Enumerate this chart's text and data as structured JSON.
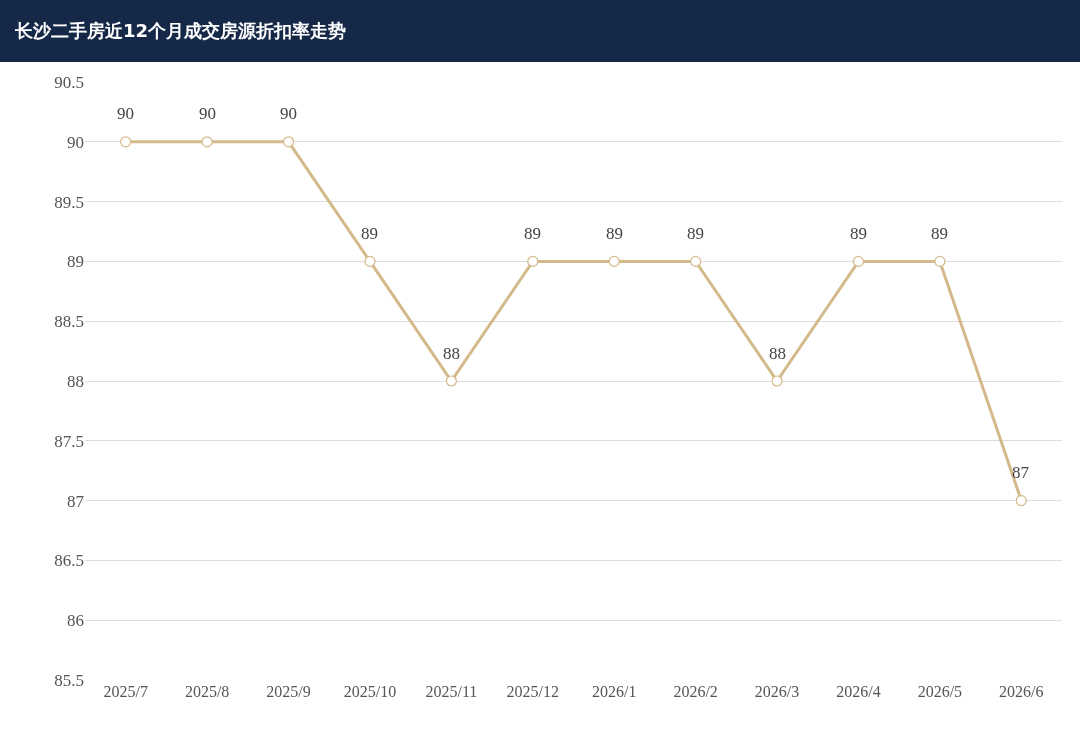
{
  "chart_data": {
    "type": "line",
    "title": "长沙二手房近12个月成交房源折扣率走势",
    "categories": [
      "2025/7",
      "2025/8",
      "2025/9",
      "2025/10",
      "2025/11",
      "2025/12",
      "2026/1",
      "2026/2",
      "2026/3",
      "2026/4",
      "2026/5",
      "2026/6"
    ],
    "series": [
      {
        "color": "#d4b98a",
        "values": [
          90,
          90,
          90,
          89,
          88,
          89,
          89,
          89,
          88,
          89,
          89,
          87
        ]
      }
    ],
    "ylim": [
      85.5,
      90.5
    ],
    "yticks": [
      85.5,
      86,
      86.5,
      87,
      87.5,
      88,
      88.5,
      89,
      89.5,
      90,
      90.5
    ],
    "grid": "y",
    "marker": "circle",
    "line_style": "solid",
    "data_labels": true
  }
}
